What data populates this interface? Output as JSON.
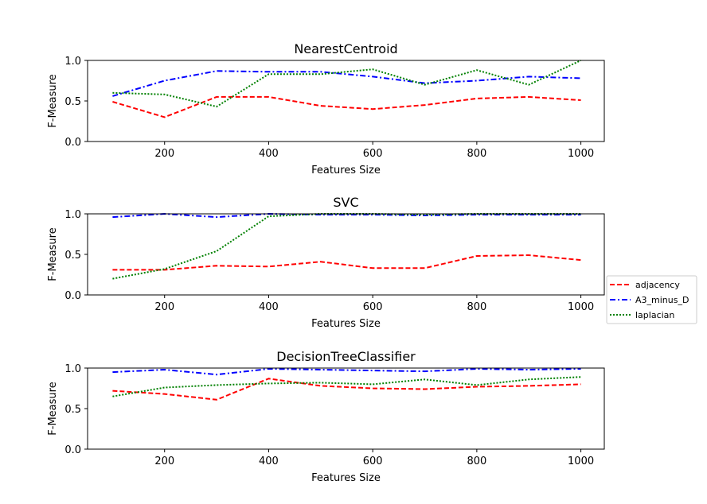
{
  "legend": {
    "placement": "right-center",
    "entries": [
      {
        "name": "adjacency",
        "color": "#ff0000",
        "dash": "dashed"
      },
      {
        "name": "A3_minus_D",
        "color": "#0000ff",
        "dash": "dashdot"
      },
      {
        "name": "laplacian",
        "color": "#008000",
        "dash": "dotted"
      }
    ]
  },
  "chart_data": [
    {
      "type": "line",
      "title": "NearestCentroid",
      "xlabel": "Features Size",
      "ylabel": "F-Measure",
      "xlim": [
        52,
        1045
      ],
      "ylim": [
        0.0,
        1.0
      ],
      "xticks": [
        "200",
        "400",
        "600",
        "800",
        "1000"
      ],
      "yticks": [
        "0.0",
        "0.5",
        "1.0"
      ],
      "grid": false,
      "x": [
        100,
        200,
        300,
        400,
        500,
        600,
        700,
        800,
        900,
        1000
      ],
      "series": [
        {
          "name": "adjacency",
          "values": [
            0.49,
            0.3,
            0.55,
            0.55,
            0.44,
            0.4,
            0.45,
            0.53,
            0.55,
            0.51
          ]
        },
        {
          "name": "A3_minus_D",
          "values": [
            0.56,
            0.75,
            0.87,
            0.86,
            0.86,
            0.8,
            0.72,
            0.75,
            0.8,
            0.78
          ]
        },
        {
          "name": "laplacian",
          "values": [
            0.6,
            0.58,
            0.43,
            0.83,
            0.83,
            0.89,
            0.7,
            0.88,
            0.7,
            1.0
          ]
        }
      ]
    },
    {
      "type": "line",
      "title": "SVC",
      "xlabel": "Features Size",
      "ylabel": "F-Measure",
      "xlim": [
        52,
        1045
      ],
      "ylim": [
        0.0,
        1.0
      ],
      "xticks": [
        "200",
        "400",
        "600",
        "800",
        "1000"
      ],
      "yticks": [
        "0.0",
        "0.5",
        "1.0"
      ],
      "grid": false,
      "x": [
        100,
        200,
        300,
        400,
        500,
        600,
        700,
        800,
        900,
        1000
      ],
      "series": [
        {
          "name": "adjacency",
          "values": [
            0.31,
            0.31,
            0.36,
            0.35,
            0.41,
            0.33,
            0.33,
            0.48,
            0.49,
            0.43
          ]
        },
        {
          "name": "A3_minus_D",
          "values": [
            0.96,
            1.0,
            0.96,
            1.0,
            0.99,
            0.99,
            0.98,
            0.99,
            0.99,
            0.99
          ]
        },
        {
          "name": "laplacian",
          "values": [
            0.2,
            0.32,
            0.54,
            0.97,
            1.0,
            1.0,
            0.99,
            1.0,
            1.0,
            1.0
          ]
        }
      ]
    },
    {
      "type": "line",
      "title": "DecisionTreeClassifier",
      "xlabel": "Features Size",
      "ylabel": "F-Measure",
      "xlim": [
        52,
        1045
      ],
      "ylim": [
        0.0,
        1.0
      ],
      "xticks": [
        "200",
        "400",
        "600",
        "800",
        "1000"
      ],
      "yticks": [
        "0.0",
        "0.5",
        "1.0"
      ],
      "grid": false,
      "x": [
        100,
        200,
        300,
        400,
        500,
        600,
        700,
        800,
        900,
        1000
      ],
      "series": [
        {
          "name": "adjacency",
          "values": [
            0.72,
            0.68,
            0.61,
            0.87,
            0.78,
            0.75,
            0.74,
            0.77,
            0.78,
            0.8
          ]
        },
        {
          "name": "A3_minus_D",
          "values": [
            0.95,
            0.98,
            0.92,
            0.99,
            0.98,
            0.97,
            0.96,
            0.99,
            0.98,
            0.99
          ]
        },
        {
          "name": "laplacian",
          "values": [
            0.65,
            0.76,
            0.79,
            0.81,
            0.82,
            0.8,
            0.86,
            0.79,
            0.86,
            0.89
          ]
        }
      ]
    }
  ]
}
